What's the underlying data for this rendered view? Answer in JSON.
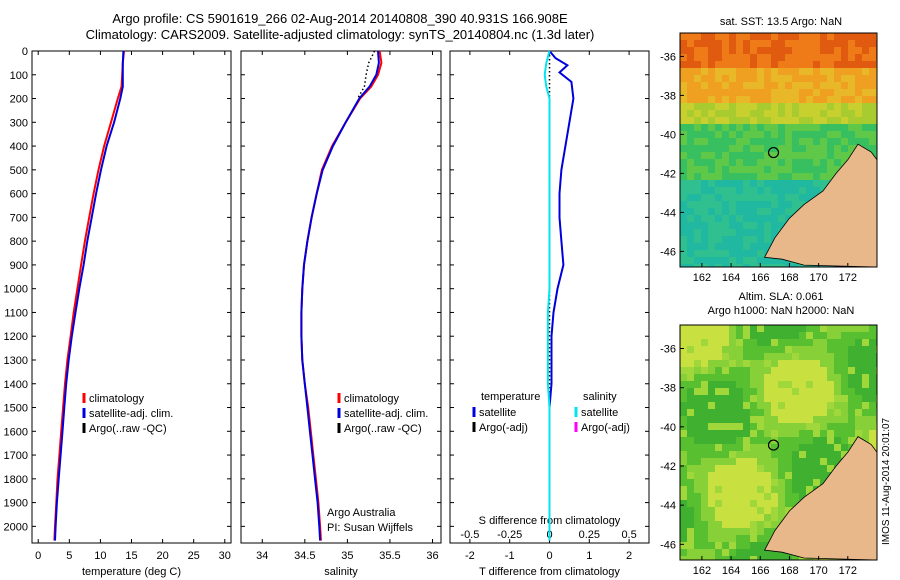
{
  "header": {
    "line1": "Argo profile: CS 5901619_266 02-Aug-2014 20140808_390 40.931S 166.908E",
    "line2": "Climatology: CARS2009. Satellite-adjusted climatology: synTS_20140804.nc (1.3d later)"
  },
  "colors": {
    "climatology": "#ff0000",
    "satellite": "#0000dd",
    "argo": "#000000",
    "satellite_salinity": "#00e5ee",
    "argo_salinity_adj": "#ff00ff"
  },
  "chart_data": [
    {
      "type": "line",
      "panel": "temperature",
      "xlabel": "temperature (deg C)",
      "ylabel": "",
      "xlim": [
        -1,
        31
      ],
      "ylim": [
        2070,
        0
      ],
      "xticks": [
        0,
        5,
        10,
        15,
        20,
        25,
        30
      ],
      "yticks": [
        0,
        100,
        200,
        300,
        400,
        500,
        600,
        700,
        800,
        900,
        1000,
        1100,
        1200,
        1300,
        1400,
        1500,
        1600,
        1700,
        1800,
        1900,
        2000
      ],
      "legend": [
        "climatology",
        "satellite-adj. clim.",
        "Argo(..raw -QC)"
      ],
      "series": [
        {
          "name": "climatology",
          "color": "#ff0000",
          "points": [
            [
              13.8,
              0
            ],
            [
              13.6,
              50
            ],
            [
              13.5,
              100
            ],
            [
              13.4,
              150
            ],
            [
              12.8,
              200
            ],
            [
              11.7,
              300
            ],
            [
              10.6,
              400
            ],
            [
              9.7,
              500
            ],
            [
              8.9,
              600
            ],
            [
              8.2,
              700
            ],
            [
              7.5,
              800
            ],
            [
              6.9,
              900
            ],
            [
              6.3,
              1000
            ],
            [
              5.7,
              1100
            ],
            [
              5.2,
              1200
            ],
            [
              4.7,
              1300
            ],
            [
              4.3,
              1400
            ],
            [
              4.0,
              1500
            ],
            [
              3.7,
              1600
            ],
            [
              3.4,
              1700
            ],
            [
              3.1,
              1800
            ],
            [
              2.9,
              1900
            ],
            [
              2.7,
              2000
            ],
            [
              2.6,
              2060
            ]
          ]
        },
        {
          "name": "satellite-adj. clim.",
          "color": "#0000dd",
          "points": [
            [
              13.7,
              0
            ],
            [
              13.6,
              50
            ],
            [
              13.6,
              100
            ],
            [
              13.6,
              150
            ],
            [
              13.2,
              200
            ],
            [
              12.2,
              300
            ],
            [
              11.0,
              400
            ],
            [
              10.1,
              500
            ],
            [
              9.3,
              600
            ],
            [
              8.6,
              700
            ],
            [
              7.9,
              800
            ],
            [
              7.3,
              900
            ],
            [
              6.6,
              1000
            ],
            [
              6.0,
              1100
            ],
            [
              5.4,
              1200
            ],
            [
              4.9,
              1300
            ],
            [
              4.5,
              1400
            ],
            [
              4.2,
              1500
            ],
            [
              3.9,
              1600
            ],
            [
              3.6,
              1700
            ],
            [
              3.3,
              1800
            ],
            [
              3.0,
              1900
            ],
            [
              2.8,
              2000
            ],
            [
              2.7,
              2060
            ]
          ]
        }
      ]
    },
    {
      "type": "line",
      "panel": "salinity",
      "xlabel": "salinity",
      "ylabel": "",
      "xlim": [
        33.75,
        36.1
      ],
      "ylim": [
        2070,
        0
      ],
      "xticks": [
        34,
        34.5,
        35,
        35.5,
        36
      ],
      "legend": [
        "climatology",
        "satellite-adj. clim.",
        "Argo(..raw -QC)"
      ],
      "annotation": [
        "Argo Australia",
        "PI: Susan Wijffels"
      ],
      "series": [
        {
          "name": "climatology",
          "color": "#ff0000",
          "points": [
            [
              35.38,
              0
            ],
            [
              35.4,
              50
            ],
            [
              35.36,
              100
            ],
            [
              35.28,
              150
            ],
            [
              35.15,
              200
            ],
            [
              34.98,
              300
            ],
            [
              34.82,
              400
            ],
            [
              34.7,
              500
            ],
            [
              34.64,
              600
            ],
            [
              34.58,
              700
            ],
            [
              34.53,
              800
            ],
            [
              34.49,
              900
            ],
            [
              34.47,
              1000
            ],
            [
              34.46,
              1100
            ],
            [
              34.46,
              1200
            ],
            [
              34.47,
              1300
            ],
            [
              34.5,
              1400
            ],
            [
              34.54,
              1500
            ],
            [
              34.57,
              1600
            ],
            [
              34.6,
              1700
            ],
            [
              34.63,
              1800
            ],
            [
              34.66,
              1900
            ],
            [
              34.68,
              2000
            ],
            [
              34.69,
              2060
            ]
          ]
        },
        {
          "name": "satellite-adj. clim.",
          "color": "#0000dd",
          "points": [
            [
              35.36,
              0
            ],
            [
              35.37,
              50
            ],
            [
              35.34,
              100
            ],
            [
              35.26,
              150
            ],
            [
              35.14,
              200
            ],
            [
              34.98,
              300
            ],
            [
              34.83,
              400
            ],
            [
              34.71,
              500
            ],
            [
              34.64,
              600
            ],
            [
              34.58,
              700
            ],
            [
              34.53,
              800
            ],
            [
              34.49,
              900
            ],
            [
              34.47,
              1000
            ],
            [
              34.46,
              1100
            ],
            [
              34.46,
              1200
            ],
            [
              34.47,
              1300
            ],
            [
              34.5,
              1400
            ],
            [
              34.53,
              1500
            ],
            [
              34.56,
              1600
            ],
            [
              34.59,
              1700
            ],
            [
              34.62,
              1800
            ],
            [
              34.65,
              1900
            ],
            [
              34.67,
              2000
            ],
            [
              34.68,
              2060
            ]
          ]
        },
        {
          "name": "Argo(..raw -QC)",
          "color": "#000000",
          "dotted": true,
          "points": [
            [
              35.32,
              0
            ],
            [
              35.25,
              50
            ],
            [
              35.22,
              100
            ],
            [
              35.2,
              150
            ],
            [
              35.12,
              200
            ]
          ]
        }
      ]
    },
    {
      "type": "line",
      "panel": "difference",
      "xlabel": "T difference from climatology",
      "x2label": "S difference from climatology",
      "xlim": [
        -2.5,
        2.5
      ],
      "ylim": [
        2070,
        0
      ],
      "xticks": [
        -2,
        -1,
        0,
        1,
        2
      ],
      "x2ticks": [
        -0.5,
        -0.25,
        0,
        0.25,
        0.5
      ],
      "legend_left_title": "temperature",
      "legend_right_title": "salinity",
      "legend_left": [
        "satellite",
        "Argo(-adj)"
      ],
      "legend_right": [
        "satellite",
        "Argo(-adj)"
      ],
      "series": [
        {
          "name": "satellite",
          "quantity": "temperature",
          "color": "#0000dd",
          "points": [
            [
              0.0,
              0
            ],
            [
              0.15,
              30
            ],
            [
              0.45,
              60
            ],
            [
              0.25,
              90
            ],
            [
              0.55,
              130
            ],
            [
              0.6,
              200
            ],
            [
              0.5,
              300
            ],
            [
              0.4,
              400
            ],
            [
              0.3,
              500
            ],
            [
              0.25,
              600
            ],
            [
              0.25,
              700
            ],
            [
              0.3,
              800
            ],
            [
              0.35,
              900
            ],
            [
              0.2,
              1000
            ],
            [
              0.1,
              1100
            ],
            [
              0.05,
              1200
            ],
            [
              0.05,
              1300
            ],
            [
              0.05,
              1400
            ],
            [
              0.0,
              1500
            ],
            [
              0.0,
              1600
            ],
            [
              0.0,
              1700
            ],
            [
              0.0,
              1800
            ],
            [
              0.0,
              1900
            ],
            [
              0.0,
              2000
            ],
            [
              0.0,
              2060
            ]
          ]
        },
        {
          "name": "satellite",
          "quantity": "salinity",
          "color": "#00e5ee",
          "points": [
            [
              0.0,
              0
            ],
            [
              -0.02,
              50
            ],
            [
              -0.03,
              100
            ],
            [
              -0.02,
              150
            ],
            [
              0.0,
              200
            ],
            [
              0.0,
              300
            ],
            [
              0.0,
              400
            ],
            [
              0.0,
              500
            ],
            [
              0.0,
              600
            ],
            [
              0.0,
              700
            ],
            [
              0.0,
              800
            ],
            [
              0.0,
              900
            ],
            [
              0.0,
              1000
            ],
            [
              -0.01,
              1100
            ],
            [
              -0.01,
              1200
            ],
            [
              -0.01,
              1300
            ],
            [
              -0.01,
              1400
            ],
            [
              0.0,
              1500
            ],
            [
              0.0,
              1600
            ],
            [
              0.0,
              1700
            ],
            [
              0.0,
              1800
            ],
            [
              0.0,
              1900
            ],
            [
              0.0,
              2000
            ],
            [
              0.0,
              2060
            ]
          ]
        }
      ]
    },
    {
      "type": "heatmap",
      "panel": "sst-map",
      "title": "sat. SST: 13.5 Argo: NaN",
      "xlim": [
        160.5,
        174
      ],
      "ylim": [
        -46.8,
        -34.8
      ],
      "xticks": [
        162,
        164,
        166,
        168,
        170,
        172
      ],
      "yticks": [
        -36,
        -38,
        -40,
        -42,
        -44,
        -46
      ],
      "marker": {
        "lon": 166.908,
        "lat": -40.931
      }
    },
    {
      "type": "heatmap",
      "panel": "sla-map",
      "title": "Altim. SLA: 0.061",
      "subtitle": "Argo h1000: NaN h2000: NaN",
      "xlim": [
        160.5,
        174
      ],
      "ylim": [
        -46.8,
        -34.8
      ],
      "xticks": [
        162,
        164,
        166,
        168,
        170,
        172
      ],
      "yticks": [
        -36,
        -38,
        -40,
        -42,
        -44,
        -46
      ],
      "marker": {
        "lon": 166.908,
        "lat": -40.931
      }
    }
  ],
  "credit": "IMOS 11-Aug-2014 20:01:07"
}
